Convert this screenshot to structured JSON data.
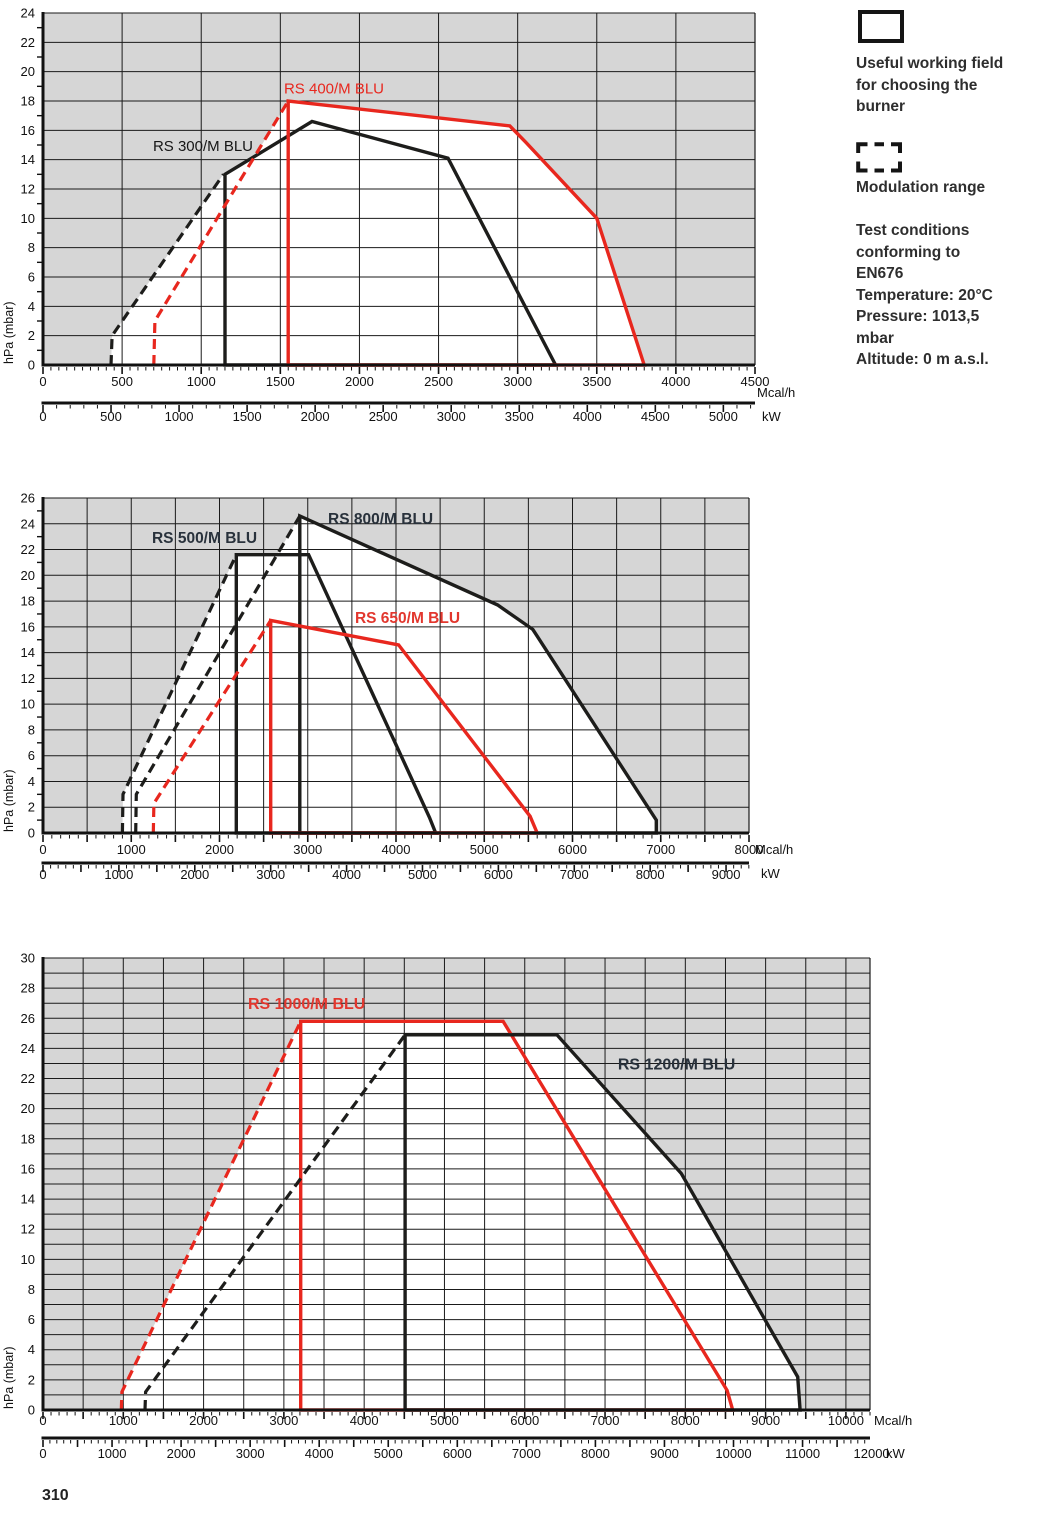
{
  "page": {
    "number": "310"
  },
  "legend": {
    "useful_field": {
      "lines": [
        "Useful working field",
        "for choosing the",
        "burner"
      ]
    },
    "modulation": {
      "label": "Modulation range"
    },
    "test_conditions": {
      "lines": [
        "Test conditions",
        "conforming to",
        "EN676",
        "Temperature: 20°C",
        "Pressure: 1013,5",
        "mbar",
        "Altitude: 0 m a.s.l."
      ]
    }
  },
  "colors": {
    "red": "#e8271e",
    "black": "#1d1d1b",
    "plot_bg": "#d6d6d6",
    "grid": "#1a1a1a",
    "axis": "#111111",
    "white": "#ffffff",
    "bold_label_dark": "#29323c"
  },
  "chart_data": [
    {
      "id": "working-field-rs300-rs400",
      "type": "area",
      "y_axis": {
        "title": "hPa (mbar)",
        "min": 0,
        "max": 24,
        "label_step": 2,
        "grid_step": 2,
        "minor_tick": 1
      },
      "x_axis_mcal": {
        "unit": "Mcal/h",
        "min": 0,
        "max": 4500,
        "label_step": 500,
        "major_tick": 500,
        "minor_tick": 50,
        "grid_step": 500
      },
      "x_axis_kw": {
        "unit": "kW",
        "min": 0,
        "max": 5000,
        "label_step": 500,
        "major_tick": 500,
        "minor_tick": 100,
        "kw_to_mcal": 0.86
      },
      "series_label_style": {
        "size": 15,
        "weight": 400
      },
      "series": [
        {
          "name": "RS 300/M BLU",
          "color": "#1d1d1b",
          "label_color": "#161616",
          "label_pos": [
            695,
            14.6
          ],
          "modulation_dashed": [
            [
              430,
              0
            ],
            [
              437,
              2
            ],
            [
              1140,
              13
            ]
          ],
          "working_field": [
            [
              1150,
              0
            ],
            [
              1150,
              13
            ],
            [
              1700,
              16.6
            ],
            [
              2560,
              14.1
            ],
            [
              3240,
              0
            ]
          ]
        },
        {
          "name": "RS 400/M BLU",
          "color": "#e8271e",
          "label_color": "#e8271e",
          "label_pos": [
            1523,
            18.5
          ],
          "modulation_dashed": [
            [
              700,
              0
            ],
            [
              707,
              3
            ],
            [
              1550,
              18
            ]
          ],
          "working_field": [
            [
              1550,
              0
            ],
            [
              1550,
              18
            ],
            [
              2950,
              16.3
            ],
            [
              3050,
              15.2
            ],
            [
              3500,
              10
            ],
            [
              3800,
              0
            ]
          ]
        }
      ],
      "white_region": [
        [
          430,
          0
        ],
        [
          437,
          2
        ],
        [
          1140,
          13
        ],
        [
          1338,
          14.2
        ],
        [
          1550,
          18
        ],
        [
          2950,
          16.3
        ],
        [
          3050,
          15.2
        ],
        [
          3500,
          10
        ],
        [
          3800,
          0
        ]
      ]
    },
    {
      "id": "working-field-rs500-rs650-rs800",
      "type": "area",
      "y_axis": {
        "title": "hPa (mbar)",
        "min": 0,
        "max": 26,
        "label_step": 2,
        "grid_step": 2,
        "minor_tick": 1
      },
      "x_axis_mcal": {
        "unit": "Mcal/h",
        "min": 0,
        "max": 8000,
        "label_step": 1000,
        "major_tick": 500,
        "minor_tick": 100,
        "grid_step": 500
      },
      "x_axis_kw": {
        "unit": "kW",
        "min": 0,
        "max": 9000,
        "label_step": 1000,
        "major_tick": 500,
        "minor_tick": 100,
        "kw_to_mcal": 0.86
      },
      "series_label_style": {
        "size": 15.5,
        "weight": 700
      },
      "series": [
        {
          "name": "RS 500/M BLU",
          "color": "#1d1d1b",
          "label_color": "#29323c",
          "label_pos": [
            1235,
            22.5
          ],
          "modulation_dashed": [
            [
              900,
              0
            ],
            [
              907,
              3
            ],
            [
              2190,
              21.6
            ]
          ],
          "working_field": [
            [
              2190,
              0
            ],
            [
              2190,
              21.6
            ],
            [
              3010,
              21.6
            ],
            [
              4380,
              1.2
            ],
            [
              4450,
              0
            ]
          ]
        },
        {
          "name": "RS 800/M BLU",
          "color": "#1d1d1b",
          "label_color": "#29323c",
          "label_pos": [
            3230,
            24.0
          ],
          "modulation_dashed": [
            [
              1050,
              0
            ],
            [
              1057,
              3
            ],
            [
              2910,
              24.6
            ]
          ],
          "working_field": [
            [
              2910,
              0
            ],
            [
              2910,
              24.6
            ],
            [
              5150,
              17.7
            ],
            [
              5550,
              15.8
            ],
            [
              6950,
              1
            ],
            [
              6950,
              0
            ]
          ]
        },
        {
          "name": "RS 650/M BLU",
          "color": "#e8271e",
          "label_color": "#e2372e",
          "label_pos": [
            3535,
            16.3
          ],
          "modulation_dashed": [
            [
              1250,
              0
            ],
            [
              1257,
              2.3
            ],
            [
              2580,
              16.5
            ]
          ],
          "working_field": [
            [
              2580,
              0
            ],
            [
              2580,
              16.5
            ],
            [
              4030,
              14.6
            ],
            [
              5520,
              1.3
            ],
            [
              5600,
              0
            ]
          ]
        }
      ],
      "white_region": [
        [
          900,
          0
        ],
        [
          907,
          3
        ],
        [
          2190,
          21.6
        ],
        [
          2653,
          21.6
        ],
        [
          2910,
          24.6
        ],
        [
          5150,
          17.7
        ],
        [
          5550,
          15.8
        ],
        [
          6950,
          1
        ],
        [
          6950,
          0
        ]
      ]
    },
    {
      "id": "working-field-rs1000-rs1200",
      "type": "area",
      "y_axis": {
        "title": "hPa (mbar)",
        "min": 0,
        "max": 30,
        "label_step": 2,
        "grid_step": 1,
        "minor_tick": 1
      },
      "x_axis_mcal": {
        "unit": "Mcal/h",
        "min": 0,
        "max": 10000,
        "label_step": 1000,
        "major_tick": 500,
        "minor_tick": 100,
        "grid_step": 500
      },
      "x_axis_kw": {
        "unit": "kW",
        "min": 0,
        "max": 12000,
        "label_step": 1000,
        "major_tick": 500,
        "minor_tick": 100,
        "kw_to_mcal": 0.86
      },
      "series_label_style": {
        "size": 16,
        "weight": 700
      },
      "series": [
        {
          "name": "RS 1000/M BLU",
          "color": "#e8271e",
          "label_color": "#e2372e",
          "label_pos": [
            2553,
            26.6
          ],
          "modulation_dashed": [
            [
              975,
              0
            ],
            [
              983,
              1.2
            ],
            [
              3210,
              25.8
            ]
          ],
          "working_field": [
            [
              3210,
              0
            ],
            [
              3210,
              25.8
            ],
            [
              5730,
              25.8
            ],
            [
              8520,
              1.3
            ],
            [
              8590,
              0
            ]
          ]
        },
        {
          "name": "RS 1200/M BLU",
          "color": "#1d1d1b",
          "label_color": "#29323c",
          "label_pos": [
            7160,
            22.6
          ],
          "modulation_dashed": [
            [
              1270,
              0
            ],
            [
              1278,
              1.2
            ],
            [
              4510,
              24.9
            ]
          ],
          "working_field": [
            [
              4510,
              0
            ],
            [
              4510,
              24.9
            ],
            [
              6400,
              24.9
            ],
            [
              7950,
              15.7
            ],
            [
              9400,
              2.2
            ],
            [
              9430,
              0
            ]
          ]
        }
      ],
      "white_region": [
        [
          975,
          0
        ],
        [
          983,
          1.2
        ],
        [
          3210,
          25.8
        ],
        [
          5730,
          25.8
        ],
        [
          5832,
          24.9
        ],
        [
          6400,
          24.9
        ],
        [
          7950,
          15.7
        ],
        [
          9400,
          2.2
        ],
        [
          9430,
          0
        ]
      ]
    }
  ]
}
